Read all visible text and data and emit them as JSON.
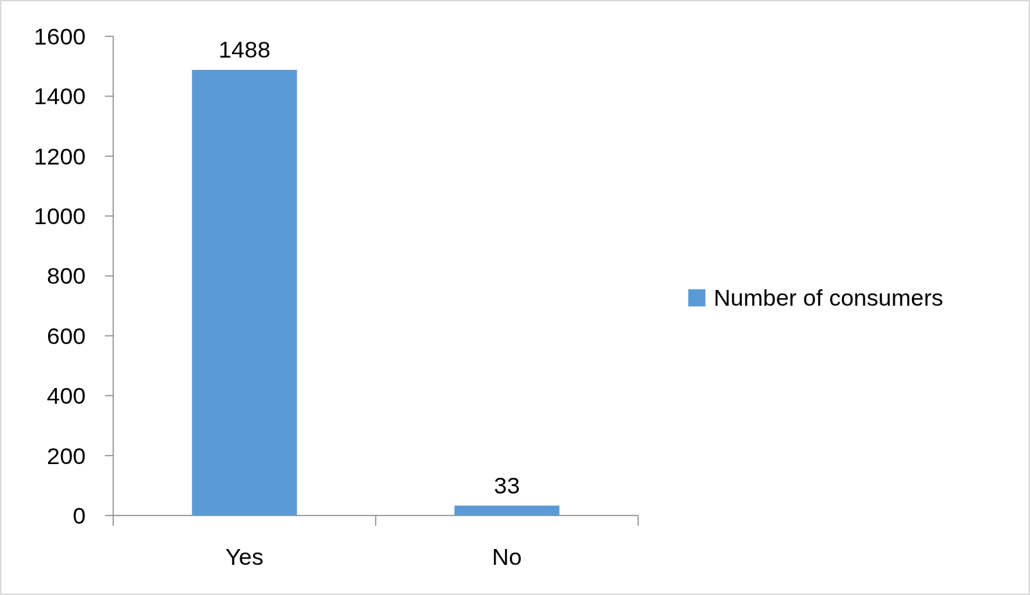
{
  "chart_data": {
    "type": "bar",
    "categories": [
      "Yes",
      "No"
    ],
    "series": [
      {
        "name": "Number of consumers",
        "color": "#5b9bd5",
        "values": [
          1488,
          33
        ]
      }
    ],
    "ylim": [
      0,
      1600
    ],
    "yticks": [
      0,
      200,
      400,
      600,
      800,
      1000,
      1200,
      1400,
      1600
    ],
    "grid": false,
    "legend": "right",
    "data_labels": true
  }
}
